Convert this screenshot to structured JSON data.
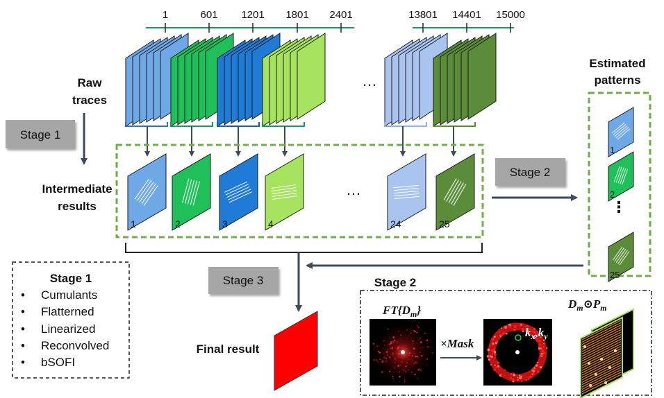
{
  "frame_ticks": [
    "1",
    "601",
    "1201",
    "1801",
    "2401",
    "13801",
    "14401",
    "15000"
  ],
  "raw_traces_label": [
    "Raw",
    "traces"
  ],
  "intermediate_label": [
    "Intermediate",
    "results"
  ],
  "estimated_label": [
    "Estimated",
    "patterns"
  ],
  "final_label": "Final result",
  "ellipsis": "…",
  "vertical_ellipsis": "⋮",
  "stage_buttons": {
    "stage1": "Stage 1",
    "stage2": "Stage 2",
    "stage3": "Stage 3"
  },
  "intermediate_numbers": [
    "1",
    "2",
    "3",
    "4",
    "24",
    "25"
  ],
  "pattern_numbers": [
    "1",
    "2",
    "25"
  ],
  "stage1_box": {
    "title": "Stage 1",
    "items": [
      "Cumulants",
      "Flatterned",
      "Linearized",
      "Reconvolved",
      "bSOFI"
    ]
  },
  "stage2_box": {
    "title": "Stage 2",
    "ft_label": "FT{D",
    "ft_sub": "m",
    "ft_close": "}",
    "mask_label": "×Mask",
    "k_label": "k",
    "k_sub_x": "x",
    "k_sub_y": "y",
    "prod_D": "D",
    "prod_sub_m": "m",
    "prod_op": "⊙",
    "prod_P": "P"
  },
  "colors": {
    "blue_light": "#8db4e2",
    "blue_mid": "#6fa8e6",
    "blue_dark": "#1f7bd6",
    "green_bright": "#1fbf5a",
    "green_light": "#a6e35f",
    "green_dark": "#5a8c3a",
    "lavender": "#a9c4ee",
    "dashed_green": "#70ad47",
    "arrow": "#3d4a5c",
    "timeline": "#1a9a5a",
    "final": "#ff0000",
    "button_bg": "#a6a6a6"
  }
}
